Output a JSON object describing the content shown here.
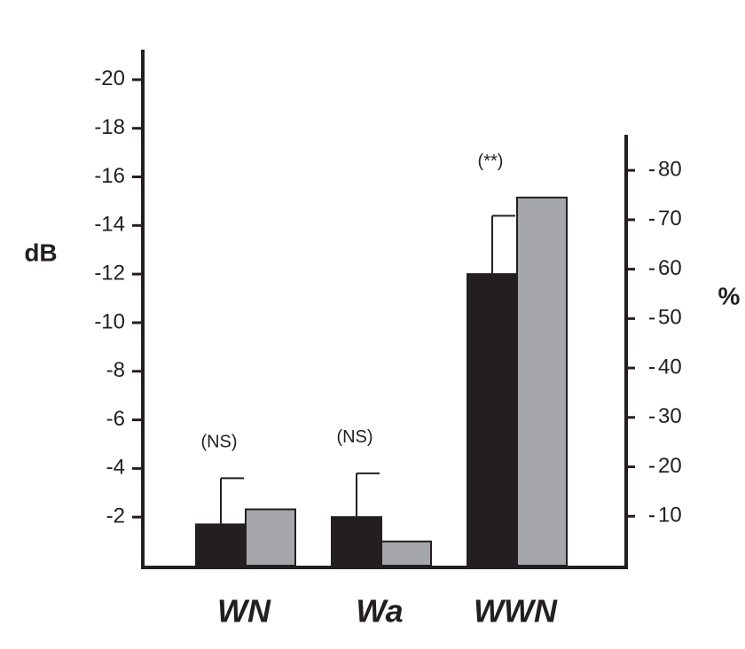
{
  "chart_data": {
    "type": "bar",
    "y_label": "dB",
    "y2_label": "%",
    "categories": [
      "WN",
      "Wa",
      "WWN"
    ],
    "annotations": [
      "(NS)",
      "(NS)",
      "(**)"
    ],
    "series": [
      {
        "name": "dB",
        "color": "#231f20",
        "values": [
          -1.7,
          -2.0,
          -12.0
        ],
        "errors": [
          1.9,
          1.8,
          2.4
        ]
      },
      {
        "name": "%",
        "color": "#a6a7aa",
        "axis": "y2",
        "values": [
          11.4,
          4.9,
          74.5
        ]
      }
    ],
    "ylim": [
      0,
      -21.2
    ],
    "yticks": [
      -2,
      -4,
      -6,
      -8,
      -10,
      -12,
      -14,
      -16,
      -18,
      -20
    ],
    "y2lim": [
      0,
      87.2
    ],
    "y2ticks": [
      10,
      20,
      30,
      40,
      50,
      60,
      70,
      80
    ]
  }
}
